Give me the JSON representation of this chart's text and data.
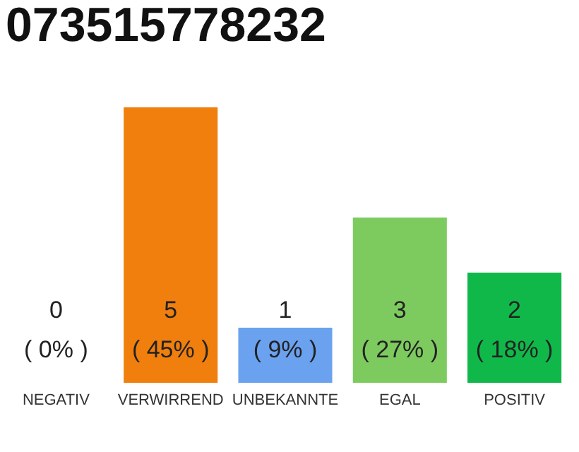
{
  "chart_data": {
    "type": "bar",
    "title": "073515778232",
    "categories": [
      "NEGATIV",
      "VERWIRREND",
      "UNBEKANNTE",
      "EGAL",
      "POSITIV"
    ],
    "values": [
      0,
      5,
      1,
      3,
      2
    ],
    "colors": [
      "#c8c8c8",
      "#f07f0e",
      "#6aa2f0",
      "#7dcb5f",
      "#10b84a"
    ],
    "value_labels": [
      "0\n( 0% )",
      "5\n( 45% )",
      "1\n( 9% )",
      "3\n( 27% )",
      "2\n( 18% )"
    ]
  }
}
